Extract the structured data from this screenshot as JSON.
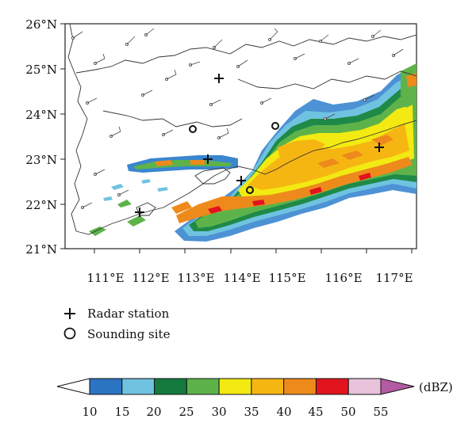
{
  "map": {
    "lat_labels": [
      "26°N",
      "25°N",
      "24°N",
      "23°N",
      "22°N",
      "21°N"
    ],
    "lon_labels": [
      "111°E",
      "112°E",
      "113°E",
      "114°E",
      "115°E",
      "116°E",
      "117°E"
    ]
  },
  "legend": {
    "radar_station": "Radar station",
    "sounding_site": "Sounding site"
  },
  "colorbar": {
    "unit": "(dBZ)",
    "ticks": [
      "10",
      "15",
      "20",
      "25",
      "30",
      "35",
      "40",
      "45",
      "50",
      "55"
    ],
    "colors": [
      "#2b74c2",
      "#6fc3e0",
      "#147a3e",
      "#5db34a",
      "#f2ea12",
      "#f6b612",
      "#ee8a1c",
      "#e1141d",
      "#e8c3db",
      "#b35aa2"
    ]
  }
}
